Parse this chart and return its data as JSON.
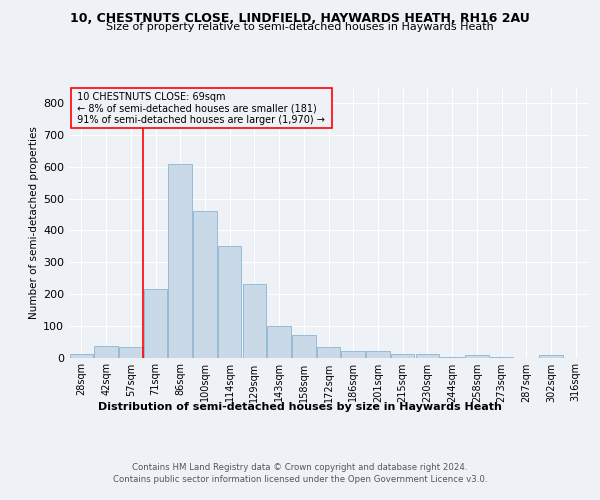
{
  "title1": "10, CHESTNUTS CLOSE, LINDFIELD, HAYWARDS HEATH, RH16 2AU",
  "title2": "Size of property relative to semi-detached houses in Haywards Heath",
  "xlabel": "Distribution of semi-detached houses by size in Haywards Heath",
  "ylabel": "Number of semi-detached properties",
  "footer1": "Contains HM Land Registry data © Crown copyright and database right 2024.",
  "footer2": "Contains public sector information licensed under the Open Government Licence v3.0.",
  "categories": [
    "28sqm",
    "42sqm",
    "57sqm",
    "71sqm",
    "86sqm",
    "100sqm",
    "114sqm",
    "129sqm",
    "143sqm",
    "158sqm",
    "172sqm",
    "186sqm",
    "201sqm",
    "215sqm",
    "230sqm",
    "244sqm",
    "258sqm",
    "273sqm",
    "287sqm",
    "302sqm",
    "316sqm"
  ],
  "values": [
    12,
    35,
    34,
    215,
    610,
    460,
    350,
    230,
    100,
    72,
    33,
    22,
    20,
    12,
    10,
    1,
    7,
    1,
    0,
    7,
    0
  ],
  "bar_color": "#c9d9e8",
  "bar_edge_color": "#8ab4d0",
  "annotation_text1": "10 CHESTNUTS CLOSE: 69sqm",
  "annotation_text2": "← 8% of semi-detached houses are smaller (181)",
  "annotation_text3": "91% of semi-detached houses are larger (1,970) →",
  "red_line_index": 3,
  "ylim": [
    0,
    850
  ],
  "yticks": [
    0,
    100,
    200,
    300,
    400,
    500,
    600,
    700,
    800
  ],
  "background_color": "#eef2f7"
}
